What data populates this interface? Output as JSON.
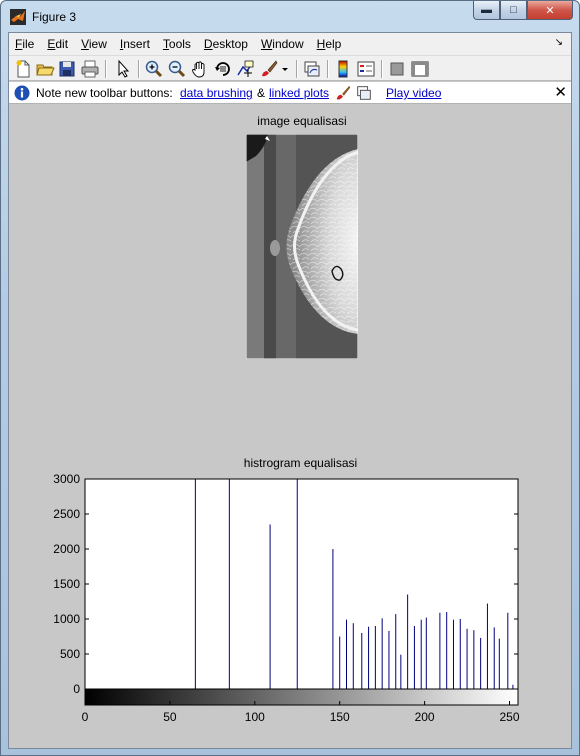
{
  "window": {
    "title": "Figure 3",
    "buttons": {
      "minimize": "▬",
      "maximize": "□",
      "close": "✕"
    }
  },
  "menubar": {
    "items": [
      {
        "key": "F",
        "rest": "ile"
      },
      {
        "key": "E",
        "rest": "dit"
      },
      {
        "key": "V",
        "rest": "iew"
      },
      {
        "key": "I",
        "rest": "nsert"
      },
      {
        "key": "T",
        "rest": "ools"
      },
      {
        "key": "D",
        "rest": "esktop"
      },
      {
        "key": "W",
        "rest": "indow"
      },
      {
        "key": "H",
        "rest": "elp"
      }
    ],
    "dock_arrow": "↘"
  },
  "toolbar": {
    "icons": [
      "new-figure-icon",
      "open-file-icon",
      "save-icon",
      "print-icon",
      "edit-plot-arrow-icon",
      "zoom-in-icon",
      "zoom-out-icon",
      "pan-hand-icon",
      "rotate-3d-icon",
      "data-cursor-icon",
      "brush-icon",
      "brush-dropdown-icon",
      "link-plot-icon",
      "colorbar-icon",
      "legend-icon",
      "hide-plot-tools-icon",
      "show-plot-tools-icon"
    ]
  },
  "infobar": {
    "text": "Note new toolbar buttons:",
    "link1": "data brushing",
    "amp": "&",
    "link2": "linked plots",
    "link3": "Play video",
    "close": "✕"
  },
  "image_axes": {
    "title": "image equalisasi"
  },
  "chart_data": {
    "type": "bar",
    "title": "histrogram equalisasi",
    "xlabel": "",
    "ylabel": "",
    "xlim": [
      0,
      255
    ],
    "ylim": [
      0,
      3000
    ],
    "xticks": [
      0,
      50,
      100,
      150,
      200,
      250
    ],
    "yticks": [
      0,
      500,
      1000,
      1500,
      2000,
      2500,
      3000
    ],
    "bar_color": "#00007f",
    "grid": false,
    "colorbar": "grayscale",
    "series": [
      {
        "x": [
          65,
          85,
          109,
          125,
          146,
          150,
          154,
          158,
          163,
          167,
          171,
          175,
          179,
          183,
          186,
          190,
          194,
          198,
          201,
          209,
          213,
          217,
          221,
          225,
          229,
          233,
          237,
          241,
          244,
          249,
          252,
          255
        ],
        "values": [
          3000,
          3000,
          2350,
          3000,
          2000,
          750,
          990,
          940,
          800,
          890,
          900,
          1010,
          830,
          1070,
          490,
          1350,
          900,
          990,
          1020,
          1090,
          1100,
          990,
          1000,
          860,
          840,
          730,
          1220,
          880,
          720,
          1090,
          60,
          1040
        ]
      }
    ]
  }
}
